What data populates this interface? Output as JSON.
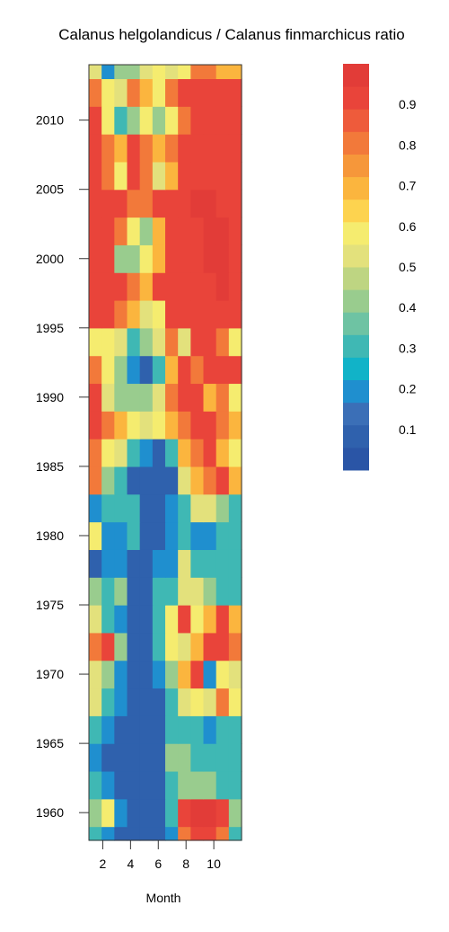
{
  "chart_data": {
    "type": "heatmap",
    "title": "Calanus helgolandicus / Calanus finmarchicus ratio",
    "xlabel": "Month",
    "ylabel": "",
    "x_ticks": [
      2,
      4,
      6,
      8,
      10
    ],
    "y_ticks": [
      1960,
      1965,
      1970,
      1975,
      1980,
      1985,
      1990,
      1995,
      2000,
      2005,
      2010
    ],
    "xlim": [
      1,
      12
    ],
    "ylim": [
      1958,
      2014
    ],
    "colorbar": {
      "range": [
        0.0,
        1.0
      ],
      "ticks": [
        0.1,
        0.2,
        0.3,
        0.4,
        0.5,
        0.6,
        0.7,
        0.8,
        0.9
      ],
      "colors": [
        "#2a55a6",
        "#2f61ad",
        "#3b6fb7",
        "#1f8fcf",
        "#11b3c8",
        "#3fb8b4",
        "#6ec3a3",
        "#99cc8e",
        "#bed582",
        "#e3e17c",
        "#f5ec6f",
        "#fdd34f",
        "#fbb53e",
        "#f6973a",
        "#f2793a",
        "#ee5b3b",
        "#e9443a",
        "#e23c38"
      ]
    },
    "rows": [
      {
        "year": 1958,
        "values": [
          0.3,
          0.2,
          0.1,
          0.1,
          0.1,
          0.1,
          0.2,
          0.8,
          0.9,
          0.9,
          0.8,
          0.3
        ]
      },
      {
        "year": 1960,
        "values": [
          0.4,
          0.6,
          0.2,
          0.1,
          0.1,
          0.1,
          0.3,
          0.9,
          0.95,
          0.95,
          0.9,
          0.4
        ]
      },
      {
        "year": 1962,
        "values": [
          0.3,
          0.2,
          0.1,
          0.1,
          0.1,
          0.1,
          0.3,
          0.4,
          0.4,
          0.4,
          0.3,
          0.3
        ]
      },
      {
        "year": 1964,
        "values": [
          0.2,
          0.1,
          0.1,
          0.1,
          0.1,
          0.1,
          0.4,
          0.4,
          0.3,
          0.3,
          0.3,
          0.3
        ]
      },
      {
        "year": 1966,
        "values": [
          0.3,
          0.2,
          0.1,
          0.1,
          0.1,
          0.1,
          0.3,
          0.3,
          0.3,
          0.2,
          0.3,
          0.3
        ]
      },
      {
        "year": 1968,
        "values": [
          0.5,
          0.3,
          0.2,
          0.1,
          0.1,
          0.1,
          0.3,
          0.5,
          0.6,
          0.5,
          0.8,
          0.6
        ]
      },
      {
        "year": 1970,
        "values": [
          0.5,
          0.4,
          0.2,
          0.1,
          0.1,
          0.2,
          0.4,
          0.7,
          0.9,
          0.2,
          0.6,
          0.5
        ]
      },
      {
        "year": 1972,
        "values": [
          0.8,
          0.9,
          0.4,
          0.1,
          0.1,
          0.3,
          0.6,
          0.5,
          0.7,
          0.9,
          0.9,
          0.8
        ]
      },
      {
        "year": 1974,
        "values": [
          0.5,
          0.3,
          0.2,
          0.1,
          0.1,
          0.3,
          0.6,
          0.9,
          0.6,
          0.7,
          0.9,
          0.7
        ]
      },
      {
        "year": 1976,
        "values": [
          0.4,
          0.3,
          0.4,
          0.1,
          0.1,
          0.3,
          0.3,
          0.5,
          0.5,
          0.4,
          0.3,
          0.3
        ]
      },
      {
        "year": 1978,
        "values": [
          0.1,
          0.2,
          0.2,
          0.1,
          0.1,
          0.2,
          0.2,
          0.5,
          0.3,
          0.3,
          0.3,
          0.3
        ]
      },
      {
        "year": 1980,
        "values": [
          0.6,
          0.2,
          0.2,
          0.3,
          0.1,
          0.1,
          0.2,
          0.3,
          0.2,
          0.2,
          0.3,
          0.3
        ]
      },
      {
        "year": 1982,
        "values": [
          0.2,
          0.3,
          0.3,
          0.3,
          0.1,
          0.1,
          0.2,
          0.3,
          0.5,
          0.5,
          0.4,
          0.3
        ]
      },
      {
        "year": 1984,
        "values": [
          0.8,
          0.4,
          0.3,
          0.1,
          0.1,
          0.1,
          0.1,
          0.5,
          0.7,
          0.8,
          0.9,
          0.7
        ]
      },
      {
        "year": 1986,
        "values": [
          0.8,
          0.6,
          0.5,
          0.3,
          0.2,
          0.1,
          0.3,
          0.7,
          0.8,
          0.9,
          0.7,
          0.6
        ]
      },
      {
        "year": 1988,
        "values": [
          0.9,
          0.8,
          0.7,
          0.6,
          0.5,
          0.6,
          0.7,
          0.8,
          0.9,
          0.9,
          0.8,
          0.7
        ]
      },
      {
        "year": 1990,
        "values": [
          0.9,
          0.5,
          0.4,
          0.4,
          0.4,
          0.5,
          0.8,
          0.9,
          0.9,
          0.7,
          0.8,
          0.6
        ]
      },
      {
        "year": 1992,
        "values": [
          0.8,
          0.6,
          0.4,
          0.2,
          0.1,
          0.3,
          0.7,
          0.9,
          0.8,
          0.9,
          0.9,
          0.9
        ]
      },
      {
        "year": 1994,
        "values": [
          0.6,
          0.6,
          0.5,
          0.3,
          0.4,
          0.5,
          0.8,
          0.5,
          0.9,
          0.9,
          0.8,
          0.6
        ]
      },
      {
        "year": 1996,
        "values": [
          0.9,
          0.9,
          0.8,
          0.7,
          0.5,
          0.6,
          0.9,
          0.9,
          0.9,
          0.9,
          0.9,
          0.9
        ]
      },
      {
        "year": 1998,
        "values": [
          0.9,
          0.9,
          0.9,
          0.8,
          0.7,
          0.9,
          0.9,
          0.9,
          0.9,
          0.9,
          0.95,
          0.9
        ]
      },
      {
        "year": 2000,
        "values": [
          0.9,
          0.9,
          0.4,
          0.4,
          0.6,
          0.7,
          0.9,
          0.9,
          0.9,
          0.95,
          0.95,
          0.9
        ]
      },
      {
        "year": 2002,
        "values": [
          0.9,
          0.9,
          0.8,
          0.6,
          0.4,
          0.7,
          0.9,
          0.9,
          0.9,
          0.95,
          0.95,
          0.9
        ]
      },
      {
        "year": 2004,
        "values": [
          0.9,
          0.9,
          0.9,
          0.8,
          0.8,
          0.9,
          0.9,
          0.9,
          0.95,
          0.95,
          0.9,
          0.9
        ]
      },
      {
        "year": 2006,
        "values": [
          0.9,
          0.8,
          0.6,
          0.9,
          0.8,
          0.5,
          0.7,
          0.9,
          0.9,
          0.9,
          0.9,
          0.9
        ]
      },
      {
        "year": 2008,
        "values": [
          0.9,
          0.8,
          0.7,
          0.9,
          0.8,
          0.7,
          0.8,
          0.9,
          0.9,
          0.9,
          0.9,
          0.9
        ]
      },
      {
        "year": 2010,
        "values": [
          0.9,
          0.6,
          0.3,
          0.4,
          0.6,
          0.4,
          0.6,
          0.8,
          0.9,
          0.9,
          0.9,
          0.9
        ]
      },
      {
        "year": 2012,
        "values": [
          0.8,
          0.6,
          0.5,
          0.8,
          0.7,
          0.6,
          0.8,
          0.9,
          0.9,
          0.9,
          0.9,
          0.9
        ]
      },
      {
        "year": 2014,
        "values": [
          0.5,
          0.2,
          0.4,
          0.4,
          0.5,
          0.6,
          0.5,
          0.6,
          0.8,
          0.8,
          0.7,
          0.7
        ]
      }
    ]
  }
}
